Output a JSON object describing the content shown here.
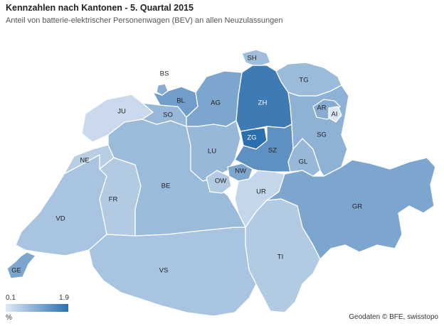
{
  "title": "Kennzahlen nach Kantonen - 5. Quartal 2015",
  "subtitle": "Anteil von batterie-elektrischer Personenwagen (BEV) an allen Neuzulassungen",
  "legend": {
    "min": "0.1",
    "max": "1.9",
    "unit": "%",
    "color_low": "#dfe9f5",
    "color_high": "#2c6fae"
  },
  "source": "Geodaten © BFE, swisstopo",
  "cantons": [
    {
      "code": "GE",
      "level": 0.55
    },
    {
      "code": "VD",
      "level": 0.3
    },
    {
      "code": "VS",
      "level": 0.3
    },
    {
      "code": "NE",
      "level": 0.22
    },
    {
      "code": "JU",
      "level": 0.12
    },
    {
      "code": "FR",
      "level": 0.25
    },
    {
      "code": "BE",
      "level": 0.38
    },
    {
      "code": "SO",
      "level": 0.4
    },
    {
      "code": "BS",
      "level": 0.5
    },
    {
      "code": "BL",
      "level": 0.62
    },
    {
      "code": "AG",
      "level": 0.55
    },
    {
      "code": "LU",
      "level": 0.4
    },
    {
      "code": "OW",
      "level": 0.25
    },
    {
      "code": "NW",
      "level": 0.55
    },
    {
      "code": "UR",
      "level": 0.15
    },
    {
      "code": "TI",
      "level": 0.25
    },
    {
      "code": "ZH",
      "level": 0.9
    },
    {
      "code": "ZG",
      "level": 1.0
    },
    {
      "code": "SZ",
      "level": 0.72
    },
    {
      "code": "GL",
      "level": 0.4
    },
    {
      "code": "SH",
      "level": 0.35
    },
    {
      "code": "TG",
      "level": 0.38
    },
    {
      "code": "SG",
      "level": 0.45
    },
    {
      "code": "AR",
      "level": 0.5
    },
    {
      "code": "AI",
      "level": 0.02
    },
    {
      "code": "GR",
      "level": 0.55
    }
  ]
}
